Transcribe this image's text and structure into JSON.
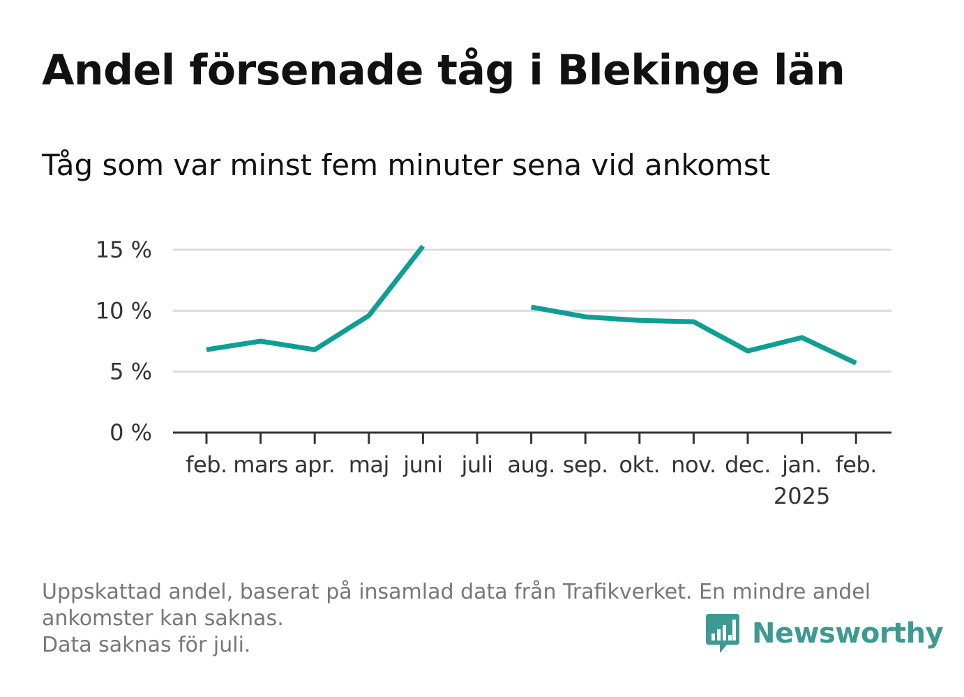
{
  "title": "Andel försenade tåg i Blekinge län",
  "subtitle": "Tåg som var minst fem minuter sena vid ankomst",
  "footnote": [
    "Uppskattad andel, baserat på insamlad data från Trafikverket. En mindre andel",
    "ankomster kan saknas.",
    "Data saknas för juli."
  ],
  "brand": {
    "name": "Newsworthy",
    "icon": "bar-chart-speech-bubble-icon",
    "color": "#3d9a93"
  },
  "chart_data": {
    "type": "line",
    "categories": [
      "feb.",
      "mars",
      "apr.",
      "maj",
      "juni",
      "juli",
      "aug.",
      "sep.",
      "okt.",
      "nov.",
      "dec.",
      "jan.",
      "feb."
    ],
    "year_labels": [
      {
        "index": 11,
        "label": "2025"
      }
    ],
    "series": [
      {
        "values": [
          6.8,
          7.5,
          6.8,
          9.6,
          15.3,
          null,
          10.3,
          9.5,
          9.2,
          9.1,
          6.7,
          7.8,
          5.7
        ],
        "color": "#0e9e96"
      }
    ],
    "yticks": [
      0,
      5,
      10,
      15
    ],
    "ytick_labels": [
      "0 %",
      "5 %",
      "10 %",
      "15 %"
    ],
    "ylim": [
      0,
      15
    ],
    "grid": true,
    "xlabel": "",
    "ylabel": ""
  }
}
